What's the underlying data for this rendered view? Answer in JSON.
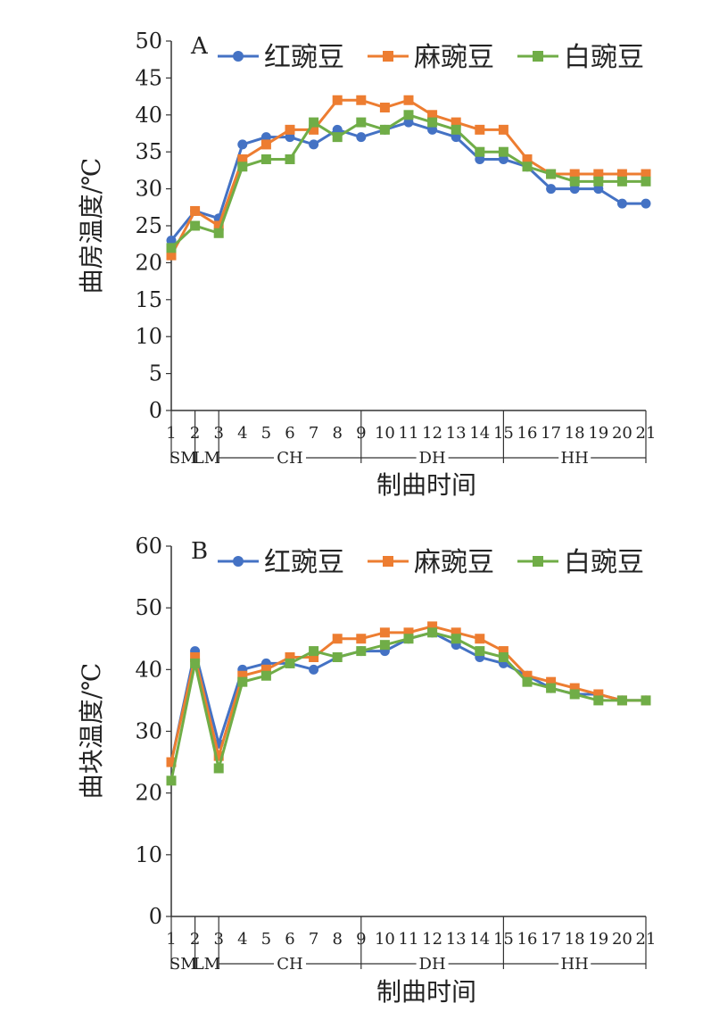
{
  "colors": {
    "red_pea": "#4472C4",
    "hemp_pea": "#ED7D31",
    "white_pea": "#70AD47",
    "axis": "#333333"
  },
  "chart_data": [
    {
      "panel_label": "A",
      "type": "line",
      "title": "",
      "xlabel": "制曲时间",
      "ylabel": "曲房温度/℃",
      "ylim": [
        0,
        50
      ],
      "yticks": [
        0,
        5,
        10,
        15,
        20,
        25,
        30,
        35,
        40,
        45,
        50
      ],
      "x": [
        "1",
        "2",
        "3",
        "4",
        "5",
        "6",
        "7",
        "8",
        "9",
        "10",
        "11",
        "12",
        "13",
        "14",
        "15",
        "16",
        "17",
        "18",
        "19",
        "20",
        "21"
      ],
      "stages": [
        {
          "label": "SM",
          "from": 1,
          "to": 2
        },
        {
          "label": "LM",
          "from": 2,
          "to": 3
        },
        {
          "label": "CH",
          "from": 3,
          "to": 9
        },
        {
          "label": "DH",
          "from": 9,
          "to": 15
        },
        {
          "label": "HH",
          "from": 15,
          "to": 21
        }
      ],
      "series": [
        {
          "name": "红豌豆",
          "color_key": "red_pea",
          "marker": "circle",
          "values": [
            23,
            27,
            26,
            36,
            37,
            37,
            36,
            38,
            37,
            38,
            39,
            38,
            37,
            34,
            34,
            33,
            30,
            30,
            30,
            28,
            28
          ]
        },
        {
          "name": "麻豌豆",
          "color_key": "hemp_pea",
          "marker": "square",
          "values": [
            21,
            27,
            25,
            34,
            36,
            38,
            38,
            42,
            42,
            41,
            42,
            40,
            39,
            38,
            38,
            34,
            32,
            32,
            32,
            32,
            32
          ]
        },
        {
          "name": "白豌豆",
          "color_key": "white_pea",
          "marker": "square",
          "values": [
            22,
            25,
            24,
            33,
            34,
            34,
            39,
            37,
            39,
            38,
            40,
            39,
            38,
            35,
            35,
            33,
            32,
            31,
            31,
            31,
            31
          ]
        }
      ]
    },
    {
      "panel_label": "B",
      "type": "line",
      "title": "",
      "xlabel": "制曲时间",
      "ylabel": "曲块温度/℃",
      "ylim": [
        0,
        60
      ],
      "yticks": [
        0,
        10,
        20,
        30,
        40,
        50,
        60
      ],
      "x": [
        "1",
        "2",
        "3",
        "4",
        "5",
        "6",
        "7",
        "8",
        "9",
        "10",
        "11",
        "12",
        "13",
        "14",
        "15",
        "16",
        "17",
        "18",
        "19",
        "20",
        "21"
      ],
      "stages": [
        {
          "label": "SM",
          "from": 1,
          "to": 2
        },
        {
          "label": "LM",
          "from": 2,
          "to": 3
        },
        {
          "label": "CH",
          "from": 3,
          "to": 9
        },
        {
          "label": "DH",
          "from": 9,
          "to": 15
        },
        {
          "label": "HH",
          "from": 15,
          "to": 21
        }
      ],
      "series": [
        {
          "name": "红豌豆",
          "color_key": "red_pea",
          "marker": "circle",
          "values": [
            25,
            43,
            28,
            40,
            41,
            41,
            40,
            42,
            43,
            43,
            45,
            46,
            44,
            42,
            41,
            39,
            37,
            36,
            36,
            35,
            35
          ]
        },
        {
          "name": "麻豌豆",
          "color_key": "hemp_pea",
          "marker": "square",
          "values": [
            25,
            42,
            26,
            39,
            40,
            42,
            42,
            45,
            45,
            46,
            46,
            47,
            46,
            45,
            43,
            39,
            38,
            37,
            36,
            35,
            35
          ]
        },
        {
          "name": "白豌豆",
          "color_key": "white_pea",
          "marker": "square",
          "values": [
            22,
            41,
            24,
            38,
            39,
            41,
            43,
            42,
            43,
            44,
            45,
            46,
            45,
            43,
            42,
            38,
            37,
            36,
            35,
            35,
            35
          ]
        }
      ]
    }
  ]
}
